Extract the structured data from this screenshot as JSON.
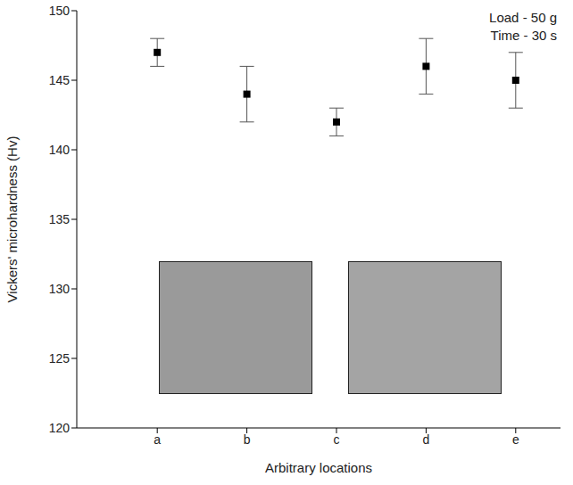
{
  "chart_data": {
    "type": "scatter",
    "categories": [
      "a",
      "b",
      "c",
      "d",
      "e"
    ],
    "values": [
      147,
      144,
      142,
      146,
      145
    ],
    "errors": [
      1,
      2,
      1,
      2,
      2
    ],
    "color": "#000000",
    "marker": "square",
    "xlabel": "Arbitrary locations",
    "ylabel": "Vickers' microhardness (Hv)",
    "ylim": [
      120,
      150
    ],
    "yticks": [
      120,
      125,
      130,
      135,
      140,
      145,
      150
    ],
    "grid": false,
    "annotations": [
      "Load - 50 g",
      "Time - 30 s"
    ]
  }
}
